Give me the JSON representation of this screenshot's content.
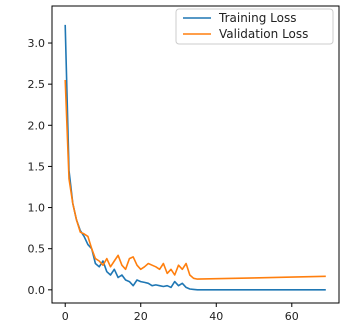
{
  "chart_data": {
    "type": "line",
    "title": "",
    "xlabel": "",
    "ylabel": "",
    "xlim": [
      -3.5,
      72.5
    ],
    "ylim": [
      -0.16,
      3.45
    ],
    "xticks": [
      0,
      20,
      40,
      60
    ],
    "yticks": [
      0.0,
      0.5,
      1.0,
      1.5,
      2.0,
      2.5,
      3.0
    ],
    "ytick_labels": [
      "0.0",
      "0.5",
      "1.0",
      "1.5",
      "2.0",
      "2.5",
      "3.0"
    ],
    "grid": false,
    "legend_position": "top-right",
    "series": [
      {
        "name": "Training Loss",
        "color": "#1f77b4",
        "x": [
          0,
          1,
          2,
          3,
          4,
          5,
          6,
          7,
          8,
          9,
          10,
          11,
          12,
          13,
          14,
          15,
          16,
          17,
          18,
          19,
          20,
          21,
          22,
          23,
          24,
          25,
          26,
          27,
          28,
          29,
          30,
          31,
          32,
          33,
          34,
          35,
          40,
          50,
          60,
          69
        ],
        "y": [
          3.22,
          1.45,
          1.05,
          0.85,
          0.72,
          0.65,
          0.55,
          0.5,
          0.32,
          0.28,
          0.35,
          0.22,
          0.18,
          0.25,
          0.15,
          0.18,
          0.12,
          0.1,
          0.05,
          0.12,
          0.1,
          0.09,
          0.08,
          0.05,
          0.06,
          0.05,
          0.04,
          0.05,
          0.03,
          0.1,
          0.05,
          0.08,
          0.03,
          0.01,
          0.005,
          0.0,
          0.0,
          0.0,
          0.0,
          0.0
        ]
      },
      {
        "name": "Validation Loss",
        "color": "#ff7f0e",
        "x": [
          0,
          1,
          2,
          3,
          4,
          5,
          6,
          7,
          8,
          9,
          10,
          11,
          12,
          13,
          14,
          15,
          16,
          17,
          18,
          19,
          20,
          21,
          22,
          23,
          24,
          25,
          26,
          27,
          28,
          29,
          30,
          31,
          32,
          33,
          34,
          35,
          40,
          50,
          60,
          69
        ],
        "y": [
          2.55,
          1.35,
          1.05,
          0.85,
          0.7,
          0.68,
          0.65,
          0.5,
          0.38,
          0.35,
          0.3,
          0.38,
          0.28,
          0.35,
          0.42,
          0.3,
          0.25,
          0.38,
          0.4,
          0.3,
          0.25,
          0.28,
          0.32,
          0.3,
          0.28,
          0.25,
          0.32,
          0.2,
          0.25,
          0.18,
          0.3,
          0.25,
          0.32,
          0.18,
          0.14,
          0.13,
          0.135,
          0.145,
          0.155,
          0.165
        ]
      }
    ]
  }
}
